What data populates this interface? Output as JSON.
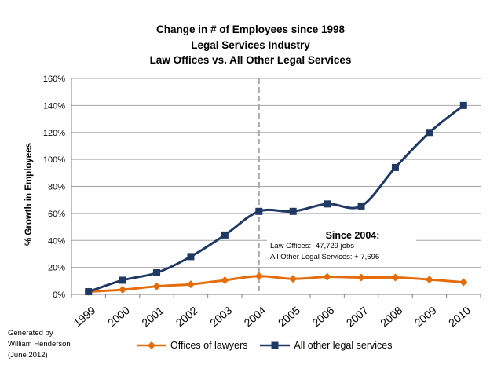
{
  "chart_data": {
    "type": "line",
    "title": [
      "Change in # of Employees since 1998",
      "Legal Services Industry",
      "Law Offices vs.  All Other Legal Services"
    ],
    "xlabel": "",
    "ylabel": "% Growth in Employees",
    "categories": [
      "1999",
      "2000",
      "2001",
      "2002",
      "2003",
      "2004",
      "2005",
      "2006",
      "2007",
      "2008",
      "2009",
      "2010"
    ],
    "ylim": [
      0,
      160
    ],
    "yticks": [
      0,
      20,
      40,
      60,
      80,
      100,
      120,
      140,
      160
    ],
    "ytick_labels": [
      "0%",
      "20%",
      "40%",
      "60%",
      "80%",
      "100%",
      "120%",
      "140%",
      "160%"
    ],
    "grid": true,
    "series": [
      {
        "name": "Offices of lawyers",
        "color": "#E46C0A",
        "marker": "diamond",
        "values": [
          2,
          3.5,
          6,
          7.5,
          10.5,
          13.5,
          11.5,
          13,
          12.5,
          12.5,
          11,
          9
        ]
      },
      {
        "name": "All other legal services",
        "color": "#1F3864",
        "marker": "square",
        "values": [
          2,
          10.5,
          16,
          28,
          44,
          61.5,
          61.5,
          67,
          65.5,
          94,
          120,
          140
        ]
      }
    ],
    "reference_line": {
      "x": "2004",
      "style": "dashed",
      "color": "#A6A6A6"
    },
    "annotation": {
      "title": "Since 2004:",
      "lines": [
        "Law Offices: -47,729 jobs",
        "All Other Legal Services: + 7,696"
      ]
    },
    "legend_position": "bottom"
  },
  "credit": [
    "Generated by",
    "William Henderson",
    "(June 2012)"
  ]
}
